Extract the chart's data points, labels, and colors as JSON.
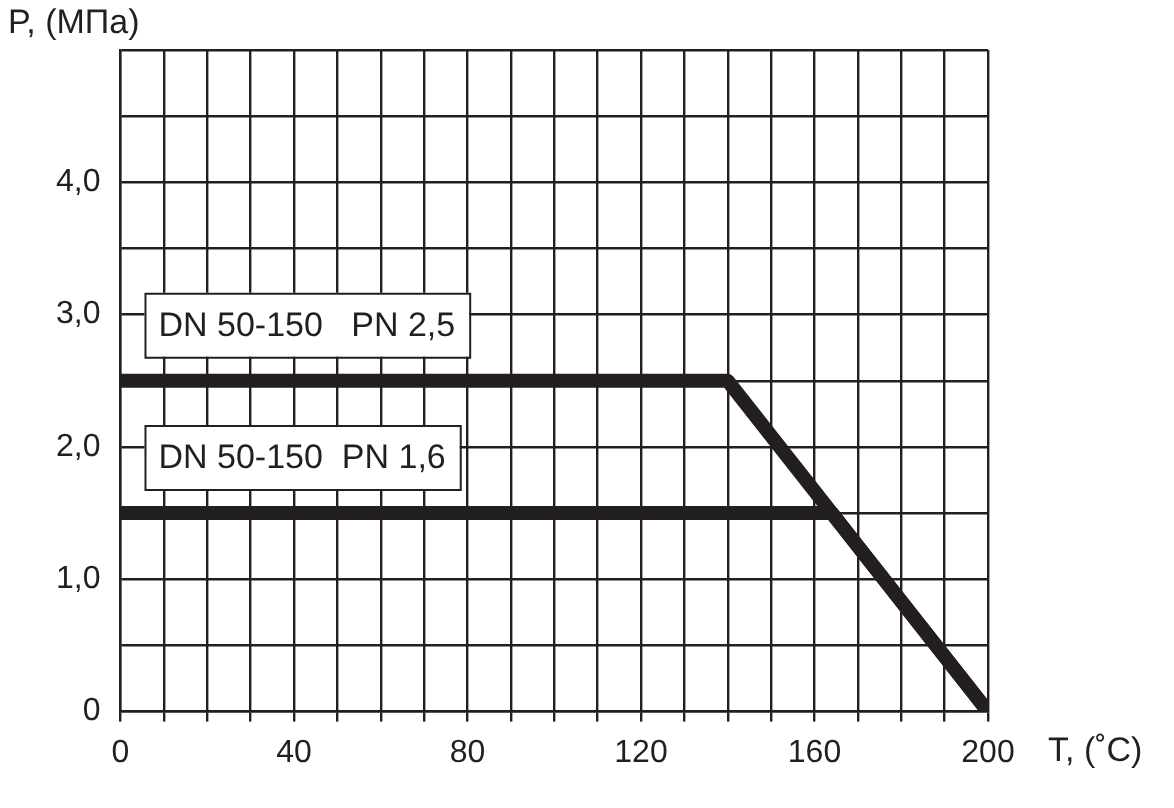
{
  "chart_data": {
    "type": "line",
    "xlabel": "T, (˚C)",
    "ylabel": "P, (МПа)",
    "xlim": [
      0,
      200
    ],
    "ylim": [
      0,
      5
    ],
    "xticks": [
      0,
      {
        "value": 10,
        "label": null
      },
      {
        "value": 20,
        "label": null
      },
      {
        "value": 30,
        "label": null
      },
      40,
      {
        "value": 50,
        "label": null
      },
      {
        "value": 60,
        "label": null
      },
      {
        "value": 70,
        "label": null
      },
      80,
      {
        "value": 90,
        "label": null
      },
      {
        "value": 100,
        "label": null
      },
      {
        "value": 110,
        "label": null
      },
      120,
      {
        "value": 130,
        "label": null
      },
      {
        "value": 140,
        "label": null
      },
      {
        "value": 150,
        "label": null
      },
      160,
      {
        "value": 170,
        "label": null
      },
      {
        "value": 180,
        "label": null
      },
      {
        "value": 190,
        "label": null
      },
      200
    ],
    "yticks": [
      0,
      {
        "value": 0.5,
        "label": null
      },
      {
        "value": 1,
        "label": "1,0"
      },
      {
        "value": 1.5,
        "label": null
      },
      {
        "value": 2,
        "label": "2,0"
      },
      {
        "value": 2.5,
        "label": null
      },
      {
        "value": 3,
        "label": "3,0"
      },
      {
        "value": 3.5,
        "label": null
      },
      {
        "value": 4,
        "label": "4,0"
      },
      {
        "value": 4.5,
        "label": null
      },
      {
        "value": 5,
        "label": null
      }
    ],
    "grid": true,
    "legend": false,
    "marker": "none",
    "line_style": "solid",
    "series": [
      {
        "name": "DN 50-150   PN 2,5",
        "color": "#231f20",
        "x": [
          0,
          140,
          200
        ],
        "values": [
          2.5,
          2.5,
          0
        ]
      },
      {
        "name": "DN 50-150  PN 1,6",
        "color": "#231f20",
        "x": [
          0,
          164,
          200
        ],
        "values": [
          1.5,
          1.5,
          0
        ]
      }
    ]
  }
}
